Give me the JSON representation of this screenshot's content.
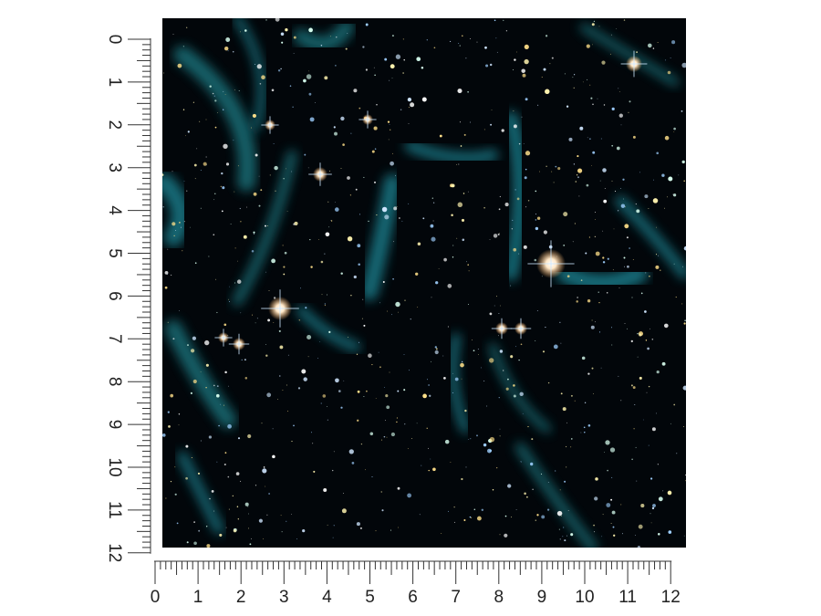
{
  "rulers": {
    "vertical": {
      "labels": [
        "0",
        "1",
        "2",
        "3",
        "4",
        "5",
        "6",
        "7",
        "8",
        "9",
        "10",
        "11",
        "12"
      ]
    },
    "horizontal": {
      "labels": [
        "0",
        "1",
        "2",
        "3",
        "4",
        "5",
        "6",
        "7",
        "8",
        "9",
        "10",
        "11",
        "12"
      ]
    }
  }
}
